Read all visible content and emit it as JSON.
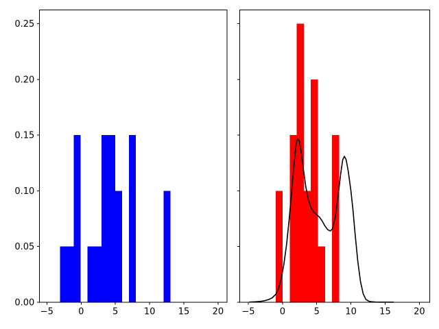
{
  "window": {
    "background": "#ffffff",
    "text_color": "#000000"
  },
  "chart_data": [
    {
      "type": "bar",
      "panel": "left",
      "series_name": "blue-density-histogram",
      "title": "",
      "xlabel": "",
      "ylabel": "",
      "grid": false,
      "legend": null,
      "bar_color": "#0000ff",
      "n_points": 20,
      "xlim": [
        -6.11,
        21.31
      ],
      "ylim": [
        0,
        0.2625
      ],
      "xticks": [
        -5,
        0,
        5,
        10,
        15,
        20
      ],
      "xtick_labels": [
        "−5",
        "0",
        "5",
        "10",
        "15",
        "20"
      ],
      "yticks": [
        0.0,
        0.05,
        0.1,
        0.15,
        0.2,
        0.25
      ],
      "ytick_labels": [
        "0.00",
        "0.05",
        "0.10",
        "0.15",
        "0.20",
        "0.25"
      ],
      "bins": [
        [
          -3.1,
          -2.09,
          0.05
        ],
        [
          -2.09,
          -1.08,
          0.05
        ],
        [
          -1.08,
          -0.07,
          0.15
        ],
        [
          0.94,
          1.95,
          0.05
        ],
        [
          1.95,
          2.96,
          0.05
        ],
        [
          2.96,
          3.97,
          0.15
        ],
        [
          3.97,
          4.98,
          0.15
        ],
        [
          4.98,
          5.99,
          0.1
        ],
        [
          7.0,
          8.01,
          0.15
        ],
        [
          12.05,
          13.06,
          0.1
        ]
      ]
    },
    {
      "type": "bar+line",
      "panel": "right",
      "series_name": "red-density-histogram",
      "title": "",
      "xlabel": "",
      "ylabel": "",
      "grid": false,
      "legend": null,
      "bar_color": "#ff0000",
      "n_points": 20,
      "xlim": [
        -6.25,
        21.52
      ],
      "ylim": [
        0,
        0.2625
      ],
      "xticks": [
        -5,
        0,
        5,
        10,
        15,
        20
      ],
      "xtick_labels": [
        "−5",
        "0",
        "5",
        "10",
        "15",
        "20"
      ],
      "yticks": [
        0.0,
        0.05,
        0.1,
        0.15,
        0.2,
        0.25
      ],
      "ytick_labels": [],
      "bins": [
        [
          -1.0,
          0.03,
          0.1
        ],
        [
          1.06,
          2.09,
          0.15
        ],
        [
          2.09,
          3.12,
          0.25
        ],
        [
          3.12,
          4.15,
          0.1
        ],
        [
          4.15,
          5.18,
          0.2
        ],
        [
          5.18,
          6.21,
          0.05
        ],
        [
          7.24,
          8.27,
          0.15
        ]
      ],
      "line": {
        "name": "kde-curve",
        "color": "#000000",
        "width": 1.6,
        "points": [
          [
            -4.8,
            0.0002
          ],
          [
            -4.0,
            0.0004
          ],
          [
            -3.2,
            0.0008
          ],
          [
            -2.6,
            0.0014
          ],
          [
            -2.0,
            0.0025
          ],
          [
            -1.5,
            0.004
          ],
          [
            -1.0,
            0.007
          ],
          [
            -0.6,
            0.012
          ],
          [
            -0.2,
            0.021
          ],
          [
            0.2,
            0.034
          ],
          [
            0.6,
            0.052
          ],
          [
            1.0,
            0.076
          ],
          [
            1.4,
            0.104
          ],
          [
            1.7,
            0.125
          ],
          [
            2.0,
            0.142
          ],
          [
            2.2,
            0.147
          ],
          [
            2.45,
            0.145
          ],
          [
            2.7,
            0.136
          ],
          [
            3.0,
            0.122
          ],
          [
            3.4,
            0.104
          ],
          [
            3.8,
            0.0915
          ],
          [
            4.2,
            0.0845
          ],
          [
            4.6,
            0.0805
          ],
          [
            5.0,
            0.0785
          ],
          [
            5.4,
            0.0765
          ],
          [
            5.8,
            0.073
          ],
          [
            6.2,
            0.0685
          ],
          [
            6.6,
            0.0652
          ],
          [
            7.0,
            0.064
          ],
          [
            7.3,
            0.066
          ],
          [
            7.7,
            0.076
          ],
          [
            8.1,
            0.094
          ],
          [
            8.5,
            0.115
          ],
          [
            8.8,
            0.128
          ],
          [
            9.05,
            0.131
          ],
          [
            9.3,
            0.128
          ],
          [
            9.6,
            0.118
          ],
          [
            10.0,
            0.1
          ],
          [
            10.3,
            0.083
          ],
          [
            10.6,
            0.062
          ],
          [
            11.0,
            0.037
          ],
          [
            11.4,
            0.0185
          ],
          [
            11.8,
            0.0075
          ],
          [
            12.2,
            0.0025
          ],
          [
            12.6,
            0.001
          ],
          [
            13.0,
            0.0005
          ],
          [
            13.6,
            0.0002
          ],
          [
            14.2,
            0.0001
          ],
          [
            15.0,
            0.0001
          ],
          [
            16.2,
            0.0001
          ]
        ]
      }
    }
  ]
}
